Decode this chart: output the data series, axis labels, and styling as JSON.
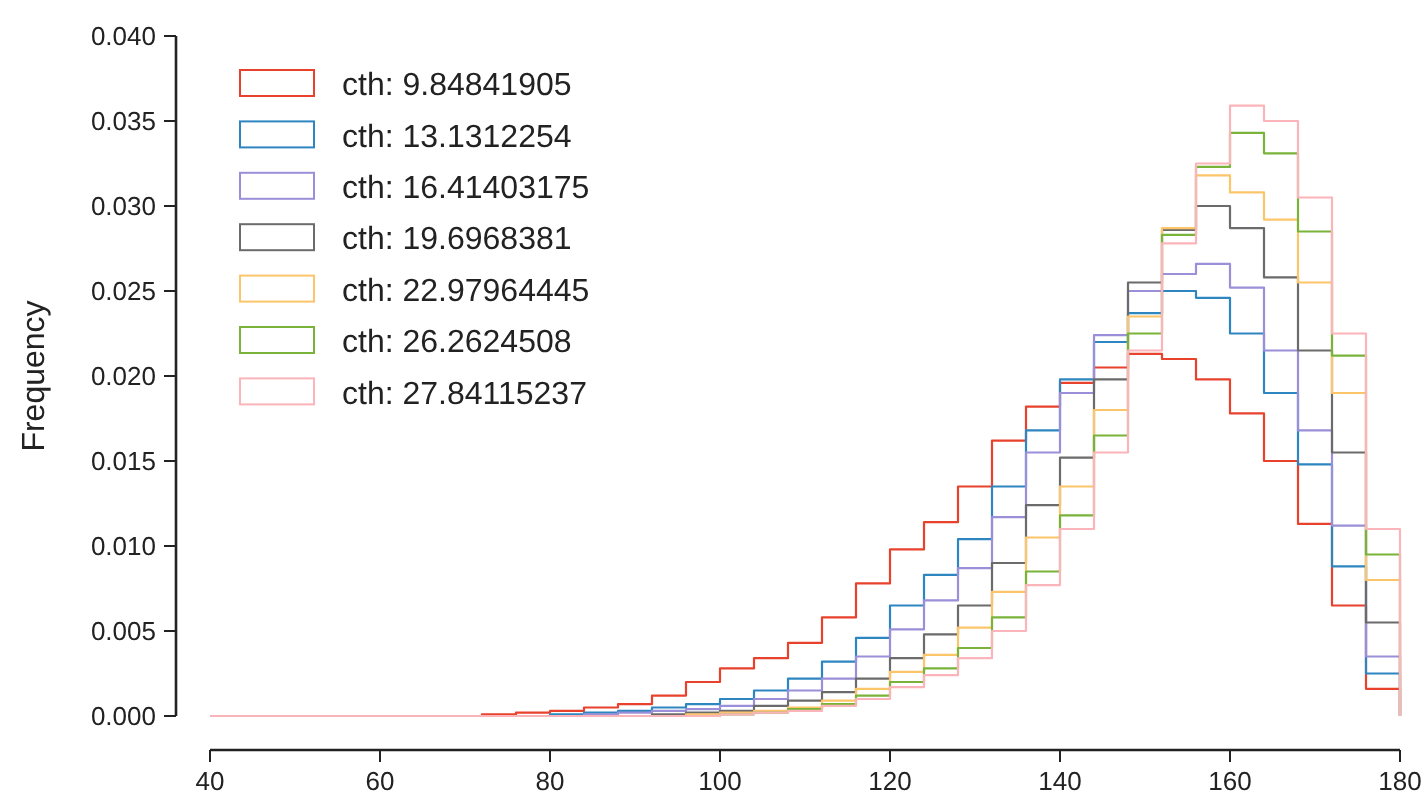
{
  "chart_data": {
    "type": "histogram",
    "ylabel": "Frequency",
    "xlim": [
      40,
      180
    ],
    "xticks": [
      40,
      60,
      80,
      100,
      120,
      140,
      160,
      180
    ],
    "ylim": [
      0,
      0.04
    ],
    "yticks": [
      {
        "value": 0,
        "label": "0.000"
      },
      {
        "value": 0.005,
        "label": "0.005"
      },
      {
        "value": 0.01,
        "label": "0.010"
      },
      {
        "value": 0.015,
        "label": "0.015"
      },
      {
        "value": 0.02,
        "label": "0.020"
      },
      {
        "value": 0.025,
        "label": "0.025"
      },
      {
        "value": 0.03,
        "label": "0.030"
      },
      {
        "value": 0.035,
        "label": "0.035"
      },
      {
        "value": 0.04,
        "label": "0.040"
      }
    ],
    "grid": false,
    "legend": "top left",
    "bins": [
      40,
      44,
      48,
      52,
      56,
      60,
      64,
      68,
      72,
      76,
      80,
      84,
      88,
      92,
      96,
      100,
      104,
      108,
      112,
      116,
      120,
      124,
      128,
      132,
      136,
      140,
      144,
      148,
      152,
      156,
      160,
      164,
      168,
      172,
      176,
      180
    ],
    "series": [
      {
        "name": "cth: 9.84841905",
        "color": "#e8412c",
        "values": [
          0,
          0,
          0,
          0,
          0,
          0,
          0,
          0,
          0.0001,
          0.0002,
          0.0003,
          0.0005,
          0.0007,
          0.0012,
          0.002,
          0.0028,
          0.0034,
          0.0043,
          0.0058,
          0.0078,
          0.0098,
          0.0114,
          0.0135,
          0.0162,
          0.0182,
          0.0196,
          0.0205,
          0.0213,
          0.021,
          0.0198,
          0.0178,
          0.015,
          0.0113,
          0.0065,
          0.0016
        ]
      },
      {
        "name": "cth: 13.1312254",
        "color": "#2e86c1",
        "values": [
          0,
          0,
          0,
          0,
          0,
          0,
          0,
          0,
          0,
          0,
          0.0001,
          0.0002,
          0.0003,
          0.0005,
          0.0007,
          0.001,
          0.0015,
          0.0022,
          0.0032,
          0.0046,
          0.0065,
          0.0083,
          0.0104,
          0.0135,
          0.0168,
          0.0198,
          0.022,
          0.0237,
          0.025,
          0.0246,
          0.0225,
          0.019,
          0.0148,
          0.0088,
          0.0025
        ]
      },
      {
        "name": "cth: 16.41403175",
        "color": "#9a8fd8",
        "values": [
          0,
          0,
          0,
          0,
          0,
          0,
          0,
          0,
          0,
          0,
          0,
          0.0001,
          0.0002,
          0.0003,
          0.0004,
          0.0006,
          0.001,
          0.0015,
          0.0022,
          0.0035,
          0.0051,
          0.0068,
          0.0087,
          0.0117,
          0.0155,
          0.019,
          0.0224,
          0.025,
          0.026,
          0.0266,
          0.0252,
          0.0215,
          0.0168,
          0.0112,
          0.0035
        ]
      },
      {
        "name": "cth: 19.6968381",
        "color": "#6b6b6b",
        "values": [
          0,
          0,
          0,
          0,
          0,
          0,
          0,
          0,
          0,
          0,
          0,
          0,
          0,
          0.0001,
          0.0002,
          0.0003,
          0.0006,
          0.0009,
          0.0014,
          0.0022,
          0.0034,
          0.0048,
          0.0065,
          0.009,
          0.0124,
          0.0152,
          0.0198,
          0.0255,
          0.0286,
          0.03,
          0.0287,
          0.0258,
          0.0215,
          0.0155,
          0.0055
        ]
      },
      {
        "name": "cth: 22.97964445",
        "color": "#fdc56a",
        "values": [
          0,
          0,
          0,
          0,
          0,
          0,
          0,
          0,
          0,
          0,
          0,
          0,
          0,
          0,
          0.0001,
          0.0002,
          0.0003,
          0.0005,
          0.0009,
          0.0016,
          0.0026,
          0.0036,
          0.0052,
          0.0073,
          0.0105,
          0.0135,
          0.018,
          0.0235,
          0.0287,
          0.0318,
          0.0308,
          0.0292,
          0.0255,
          0.019,
          0.008
        ]
      },
      {
        "name": "cth: 26.2624508",
        "color": "#7ab33a",
        "values": [
          0,
          0,
          0,
          0,
          0,
          0,
          0,
          0,
          0,
          0,
          0,
          0,
          0,
          0,
          0,
          0.0001,
          0.0002,
          0.0004,
          0.0007,
          0.0012,
          0.002,
          0.0028,
          0.004,
          0.0058,
          0.0085,
          0.0118,
          0.0165,
          0.0225,
          0.0283,
          0.0323,
          0.0343,
          0.0331,
          0.0285,
          0.0212,
          0.0095
        ]
      },
      {
        "name": "cth: 27.84115237",
        "color": "#fbb4b9",
        "values": [
          0,
          0,
          0,
          0,
          0,
          0,
          0,
          0,
          0,
          0,
          0,
          0,
          0,
          0,
          0,
          0.0001,
          0.0002,
          0.0003,
          0.0006,
          0.001,
          0.0017,
          0.0024,
          0.0034,
          0.005,
          0.0077,
          0.011,
          0.0155,
          0.0215,
          0.0278,
          0.0325,
          0.0359,
          0.035,
          0.0305,
          0.0225,
          0.011
        ]
      }
    ]
  }
}
